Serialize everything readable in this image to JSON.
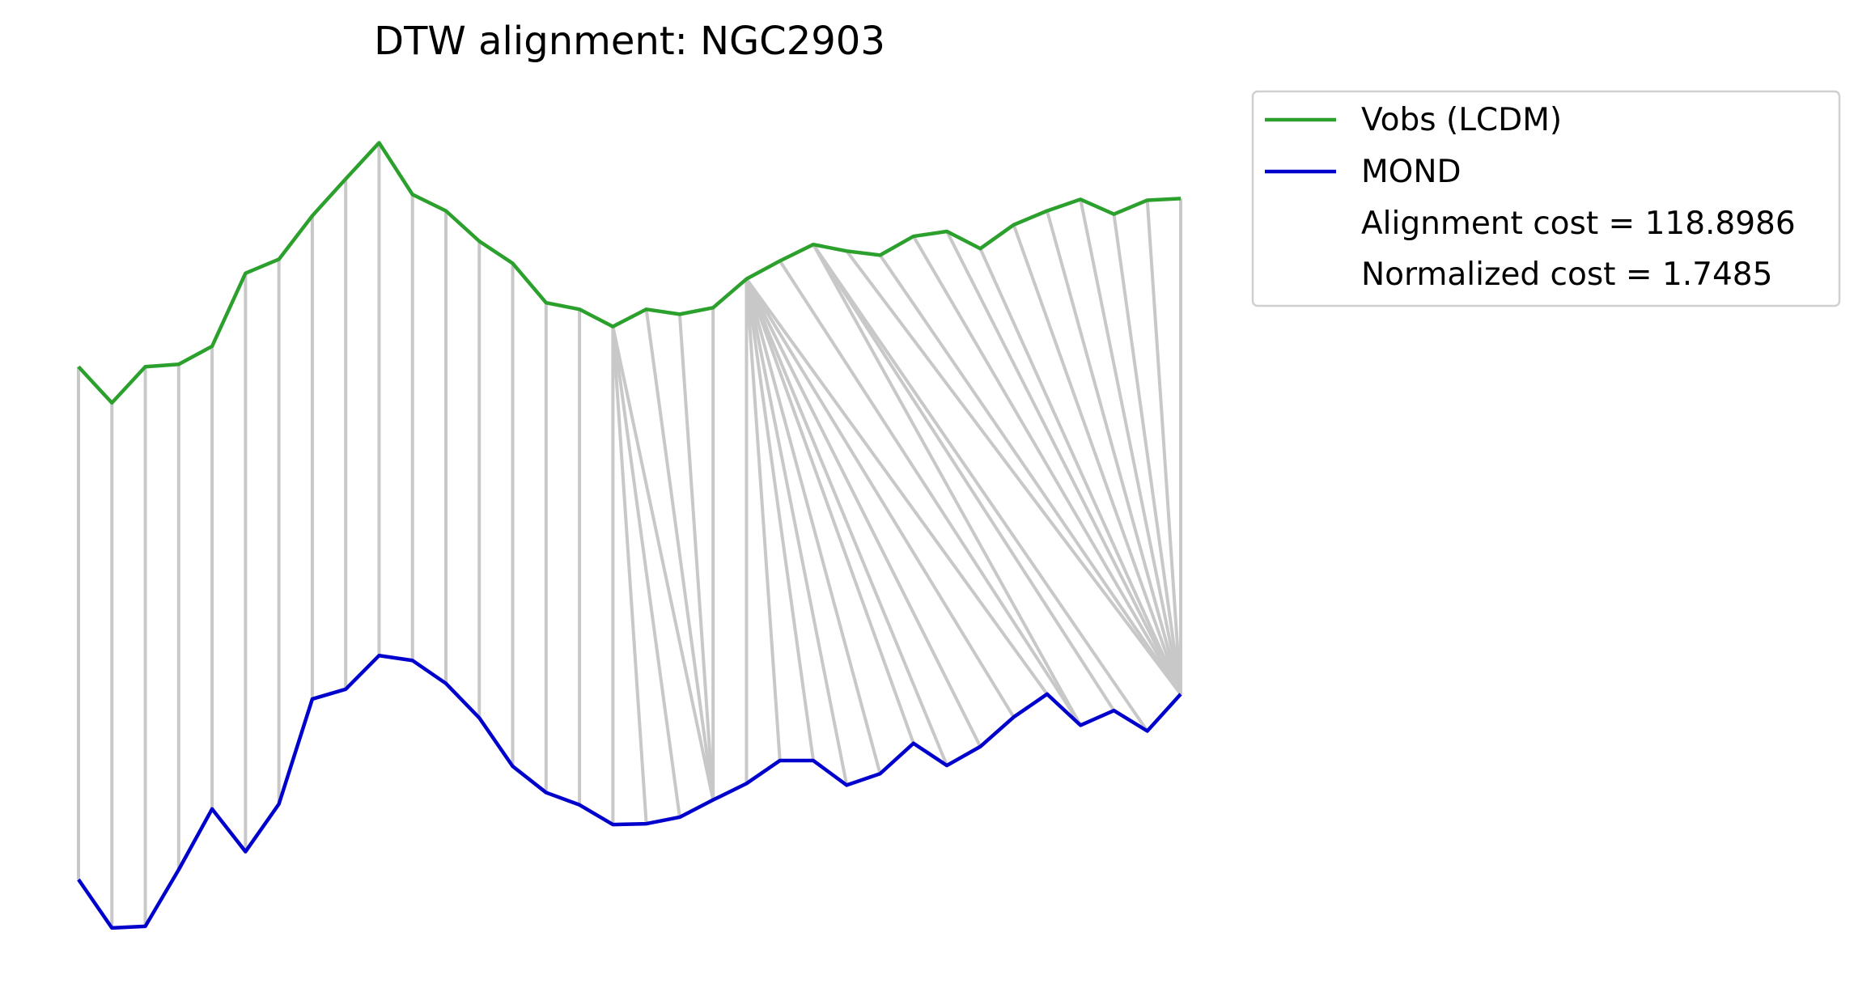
{
  "chart_data": {
    "type": "line",
    "title": "DTW alignment: NGC2903",
    "xlabel": "",
    "ylabel": "",
    "axes_visible": false,
    "grid": false,
    "legend": {
      "placement": "outside upper right",
      "entries": [
        {
          "label": "Vobs (LCDM)",
          "color": "#2ca02c"
        },
        {
          "label": "MOND",
          "color": "#0000cc"
        },
        {
          "label": "Alignment cost = 118.8986"
        },
        {
          "label": "Normalized cost = 1.7485"
        }
      ]
    },
    "x": [
      0,
      1,
      2,
      3,
      4,
      5,
      6,
      7,
      8,
      9,
      10,
      11,
      12,
      13,
      14,
      15,
      16,
      17,
      18,
      19,
      20,
      21,
      22,
      23,
      24,
      25,
      26,
      27,
      28,
      29,
      30,
      31,
      32,
      33
    ],
    "series": [
      {
        "name": "Vobs (LCDM)",
        "color": "#2ca02c",
        "values": [
          0.694,
          0.65,
          0.694,
          0.697,
          0.719,
          0.808,
          0.825,
          0.878,
          0.923,
          0.967,
          0.904,
          0.884,
          0.847,
          0.82,
          0.772,
          0.764,
          0.743,
          0.764,
          0.758,
          0.766,
          0.801,
          0.823,
          0.843,
          0.835,
          0.83,
          0.853,
          0.859,
          0.838,
          0.867,
          0.884,
          0.898,
          0.88,
          0.897,
          0.899
        ]
      },
      {
        "name": "MOND",
        "color": "#0000cc",
        "values": [
          0.069,
          0.01,
          0.012,
          0.081,
          0.155,
          0.103,
          0.161,
          0.289,
          0.301,
          0.342,
          0.336,
          0.308,
          0.266,
          0.207,
          0.175,
          0.16,
          0.136,
          0.137,
          0.145,
          0.166,
          0.186,
          0.214,
          0.214,
          0.184,
          0.198,
          0.235,
          0.208,
          0.231,
          0.267,
          0.295,
          0.257,
          0.275,
          0.25,
          0.295
        ]
      }
    ],
    "warping_path": [
      [
        0,
        0
      ],
      [
        1,
        1
      ],
      [
        2,
        2
      ],
      [
        3,
        3
      ],
      [
        4,
        4
      ],
      [
        5,
        5
      ],
      [
        6,
        6
      ],
      [
        7,
        7
      ],
      [
        8,
        8
      ],
      [
        9,
        9
      ],
      [
        10,
        10
      ],
      [
        11,
        11
      ],
      [
        12,
        12
      ],
      [
        13,
        13
      ],
      [
        14,
        14
      ],
      [
        15,
        15
      ],
      [
        16,
        16
      ],
      [
        16,
        17
      ],
      [
        16,
        18
      ],
      [
        16,
        19
      ],
      [
        17,
        19
      ],
      [
        18,
        19
      ],
      [
        19,
        19
      ],
      [
        20,
        20
      ],
      [
        20,
        21
      ],
      [
        20,
        22
      ],
      [
        20,
        23
      ],
      [
        20,
        24
      ],
      [
        20,
        25
      ],
      [
        20,
        26
      ],
      [
        20,
        27
      ],
      [
        20,
        28
      ],
      [
        20,
        29
      ],
      [
        21,
        30
      ],
      [
        22,
        30
      ],
      [
        22,
        31
      ],
      [
        22,
        32
      ],
      [
        23,
        33
      ],
      [
        24,
        33
      ],
      [
        25,
        33
      ],
      [
        26,
        33
      ],
      [
        27,
        33
      ],
      [
        28,
        33
      ],
      [
        29,
        33
      ],
      [
        30,
        33
      ],
      [
        31,
        33
      ],
      [
        32,
        33
      ],
      [
        33,
        33
      ]
    ],
    "warping_line_color": "#c8c8c8",
    "alignment_cost": 118.8986,
    "normalized_cost": 1.7485
  }
}
